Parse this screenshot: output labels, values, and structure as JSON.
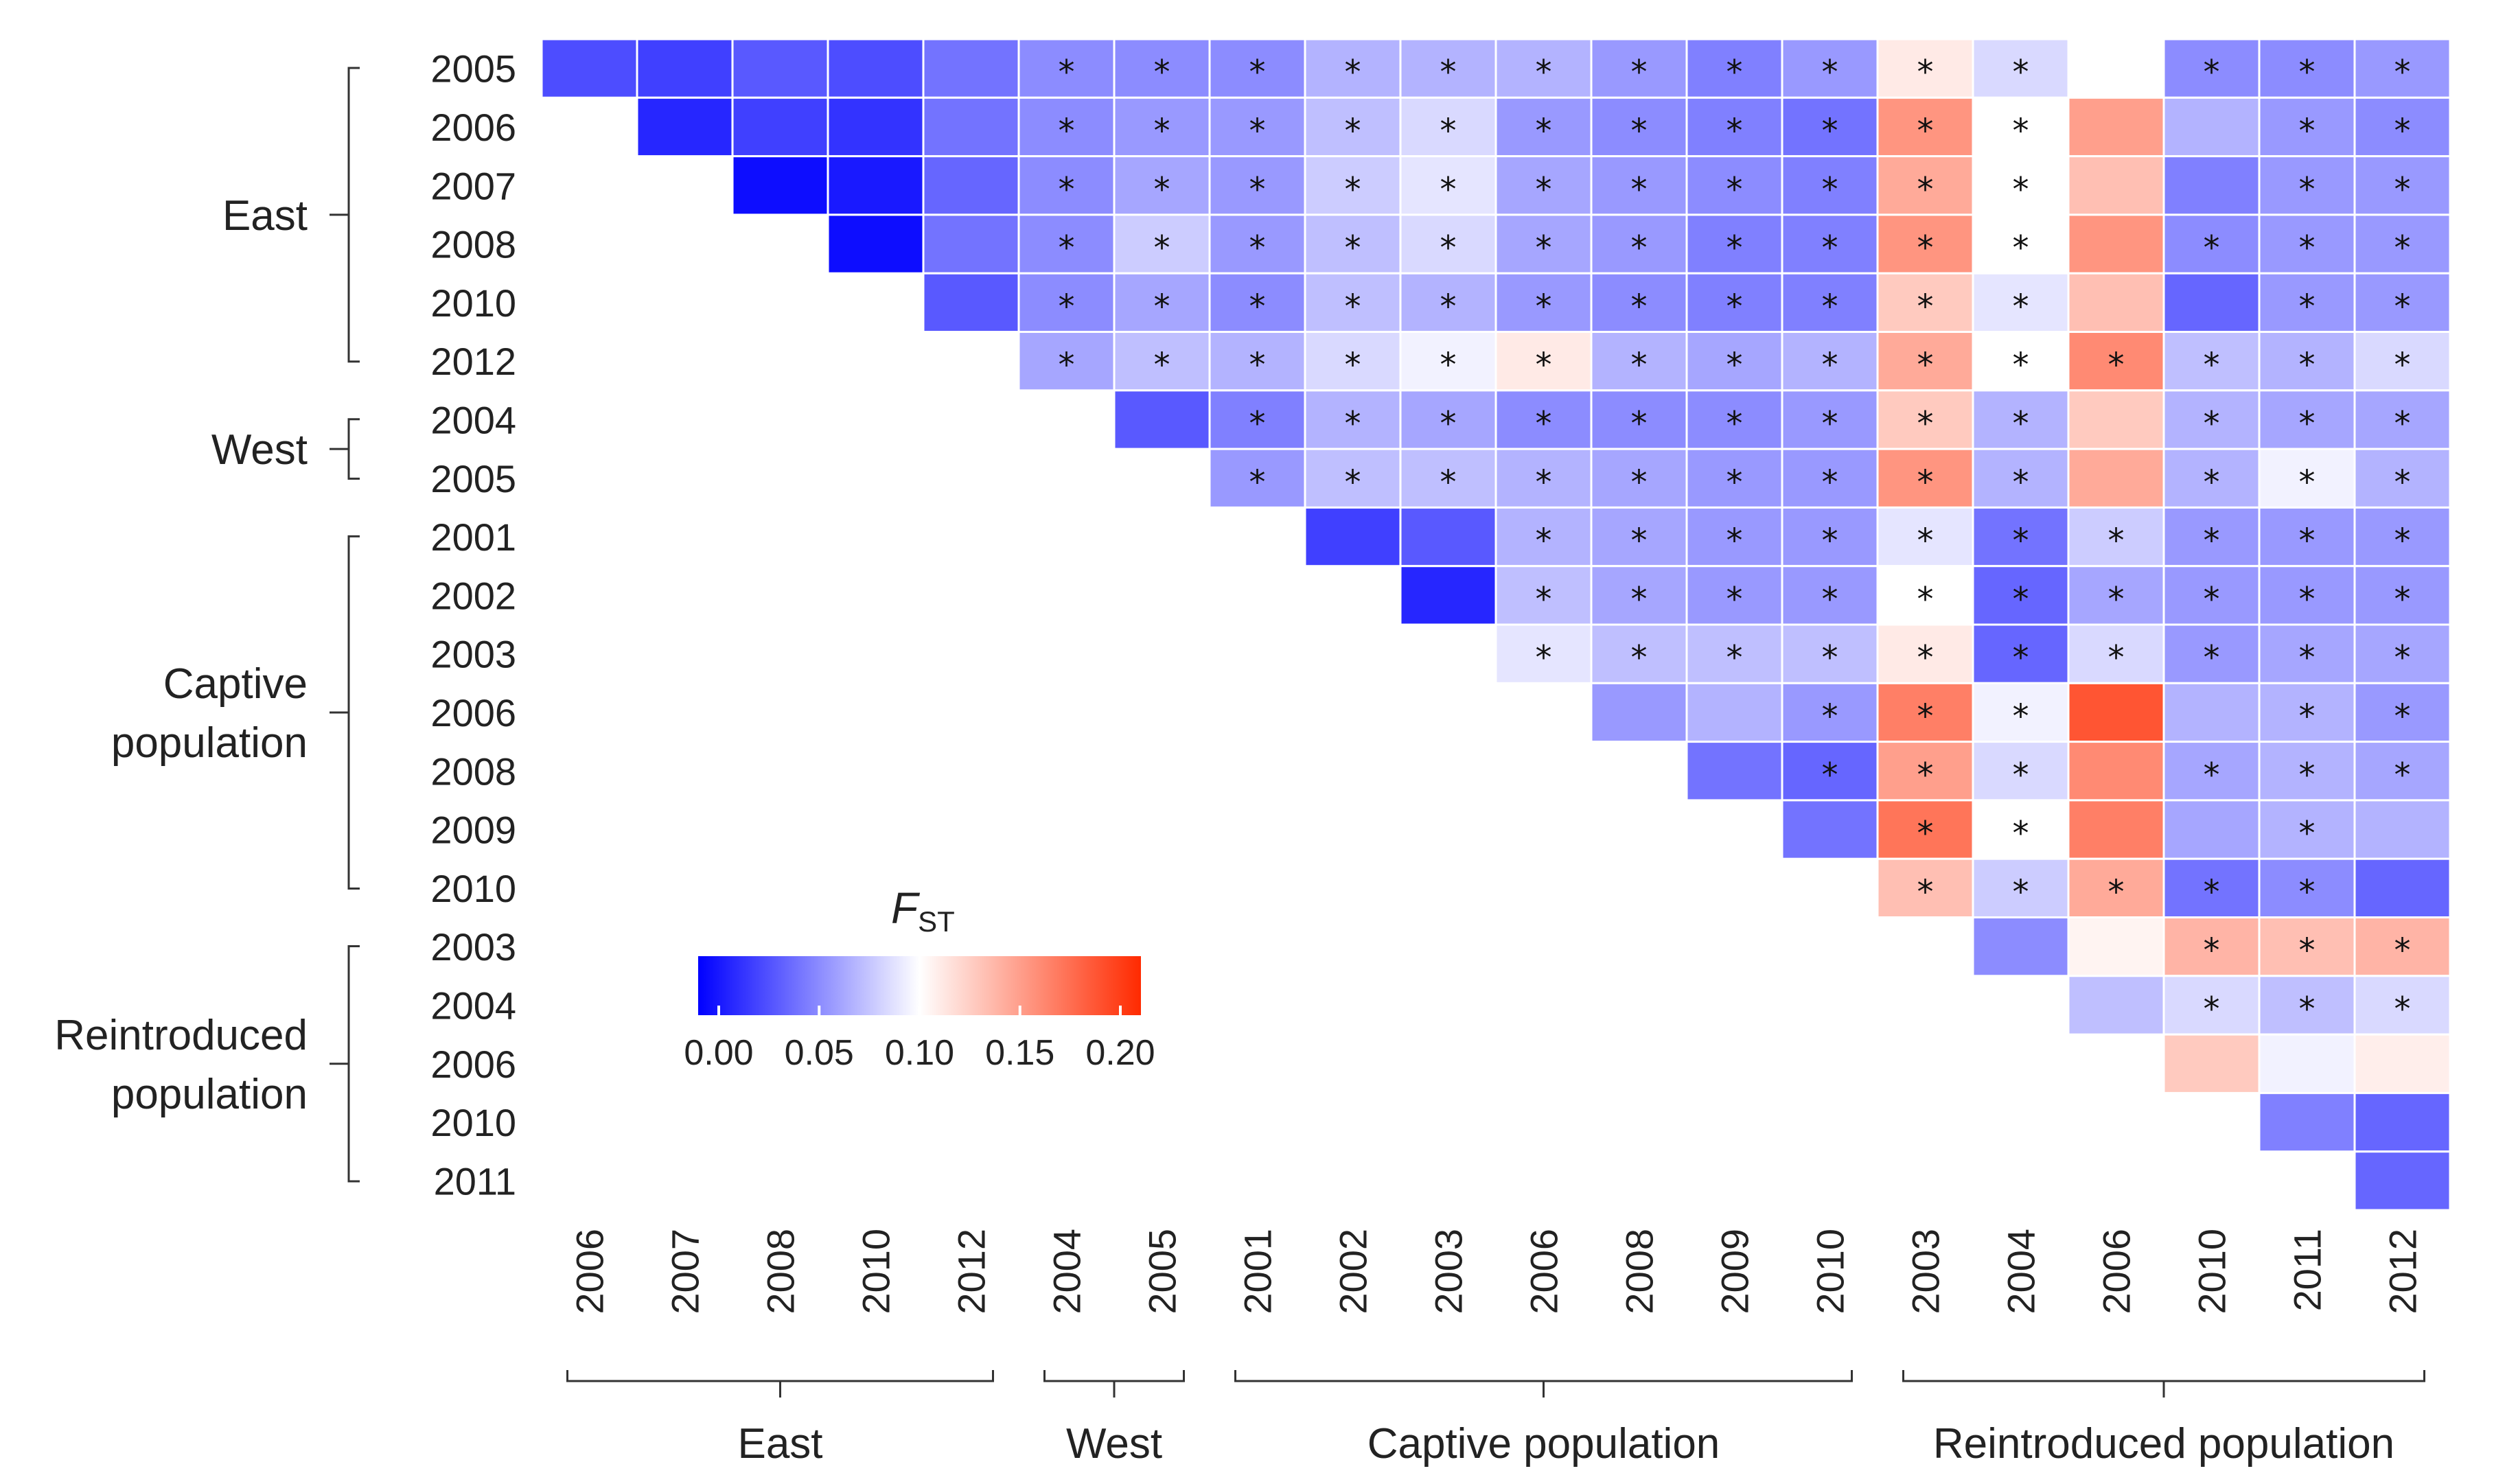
{
  "chart_data": {
    "type": "heatmap",
    "title": "",
    "legend_title": "F",
    "legend_subscript": "ST",
    "colorbar": {
      "min": 0.0,
      "max": 0.2,
      "center": 0.1,
      "low_color": "#0000ff",
      "mid_color": "#ffffff",
      "high_color": "#ff2a00",
      "ticks": [
        "0.00",
        "0.05",
        "0.10",
        "0.15",
        "0.20"
      ]
    },
    "columns": [
      {
        "group": "East",
        "year": "2006"
      },
      {
        "group": "East",
        "year": "2007"
      },
      {
        "group": "East",
        "year": "2008"
      },
      {
        "group": "East",
        "year": "2010"
      },
      {
        "group": "East",
        "year": "2012"
      },
      {
        "group": "West",
        "year": "2004"
      },
      {
        "group": "West",
        "year": "2005"
      },
      {
        "group": "Captive population",
        "year": "2001"
      },
      {
        "group": "Captive population",
        "year": "2002"
      },
      {
        "group": "Captive population",
        "year": "2003"
      },
      {
        "group": "Captive population",
        "year": "2006"
      },
      {
        "group": "Captive population",
        "year": "2008"
      },
      {
        "group": "Captive population",
        "year": "2009"
      },
      {
        "group": "Captive population",
        "year": "2010"
      },
      {
        "group": "Reintroduced population",
        "year": "2003"
      },
      {
        "group": "Reintroduced population",
        "year": "2004"
      },
      {
        "group": "Reintroduced population",
        "year": "2006"
      },
      {
        "group": "Reintroduced population",
        "year": "2010"
      },
      {
        "group": "Reintroduced population",
        "year": "2011"
      },
      {
        "group": "Reintroduced population",
        "year": "2012"
      }
    ],
    "rows": [
      {
        "group": "East",
        "year": "2005"
      },
      {
        "group": "East",
        "year": "2006"
      },
      {
        "group": "East",
        "year": "2007"
      },
      {
        "group": "East",
        "year": "2008"
      },
      {
        "group": "East",
        "year": "2010"
      },
      {
        "group": "East",
        "year": "2012"
      },
      {
        "group": "West",
        "year": "2004"
      },
      {
        "group": "West",
        "year": "2005"
      },
      {
        "group": "Captive population",
        "year": "2001"
      },
      {
        "group": "Captive population",
        "year": "2002"
      },
      {
        "group": "Captive population",
        "year": "2003"
      },
      {
        "group": "Captive population",
        "year": "2006"
      },
      {
        "group": "Captive population",
        "year": "2008"
      },
      {
        "group": "Captive population",
        "year": "2009"
      },
      {
        "group": "Captive population",
        "year": "2010"
      },
      {
        "group": "Reintroduced population",
        "year": "2003"
      },
      {
        "group": "Reintroduced population",
        "year": "2004"
      },
      {
        "group": "Reintroduced population",
        "year": "2006"
      },
      {
        "group": "Reintroduced population",
        "year": "2010"
      },
      {
        "group": "Reintroduced population",
        "year": "2011"
      }
    ],
    "row_groups": [
      {
        "label": [
          "East"
        ],
        "first": 0,
        "last": 5
      },
      {
        "label": [
          "West"
        ],
        "first": 6,
        "last": 7
      },
      {
        "label": [
          "Captive",
          "population"
        ],
        "first": 8,
        "last": 14
      },
      {
        "label": [
          "Reintroduced",
          "population"
        ],
        "first": 15,
        "last": 19
      }
    ],
    "column_groups": [
      {
        "label": "East",
        "first": 0,
        "last": 4
      },
      {
        "label": "West",
        "first": 5,
        "last": 6
      },
      {
        "label": "Captive population",
        "first": 7,
        "last": 13
      },
      {
        "label": "Reintroduced population",
        "first": 14,
        "last": 19
      }
    ],
    "values": [
      [
        0.03,
        0.025,
        0.035,
        0.03,
        0.045,
        0.055,
        0.055,
        0.055,
        0.07,
        0.07,
        0.07,
        0.06,
        0.05,
        0.06,
        0.11,
        0.085,
        null,
        0.055,
        0.055,
        0.06
      ],
      [
        null,
        0.015,
        0.025,
        0.02,
        0.045,
        0.055,
        0.06,
        0.06,
        0.075,
        0.085,
        0.06,
        0.055,
        0.05,
        0.045,
        0.15,
        0.1,
        0.145,
        0.07,
        0.06,
        0.055
      ],
      [
        null,
        null,
        0.005,
        0.01,
        0.04,
        0.055,
        0.065,
        0.06,
        0.08,
        0.09,
        0.065,
        0.06,
        0.055,
        0.05,
        0.14,
        0.1,
        0.13,
        0.05,
        0.06,
        0.06
      ],
      [
        null,
        null,
        null,
        0.005,
        0.045,
        0.055,
        0.08,
        0.06,
        0.075,
        0.085,
        0.065,
        0.06,
        0.05,
        0.05,
        0.15,
        0.1,
        0.15,
        0.055,
        0.06,
        0.06
      ],
      [
        null,
        null,
        null,
        null,
        0.035,
        0.055,
        0.065,
        0.055,
        0.075,
        0.07,
        0.06,
        0.055,
        0.05,
        0.05,
        0.125,
        0.09,
        0.13,
        0.04,
        0.06,
        0.06
      ],
      [
        null,
        null,
        null,
        null,
        null,
        0.065,
        0.075,
        0.07,
        0.085,
        0.095,
        0.11,
        0.07,
        0.065,
        0.07,
        0.14,
        0.1,
        0.155,
        0.075,
        0.07,
        0.085
      ],
      [
        null,
        null,
        null,
        null,
        null,
        null,
        0.035,
        0.05,
        0.07,
        0.065,
        0.055,
        0.055,
        0.055,
        0.06,
        0.125,
        0.07,
        0.125,
        0.07,
        0.065,
        0.065
      ],
      [
        null,
        null,
        null,
        null,
        null,
        null,
        null,
        0.06,
        0.075,
        0.075,
        0.07,
        0.065,
        0.06,
        0.06,
        0.15,
        0.07,
        0.14,
        0.07,
        0.095,
        0.07
      ],
      [
        null,
        null,
        null,
        null,
        null,
        null,
        null,
        null,
        0.025,
        0.035,
        0.07,
        0.065,
        0.06,
        0.06,
        0.09,
        0.045,
        0.08,
        0.06,
        0.06,
        0.06
      ],
      [
        null,
        null,
        null,
        null,
        null,
        null,
        null,
        null,
        null,
        0.015,
        0.075,
        0.065,
        0.06,
        0.06,
        0.1,
        0.04,
        0.065,
        0.06,
        0.06,
        0.06
      ],
      [
        null,
        null,
        null,
        null,
        null,
        null,
        null,
        null,
        null,
        null,
        0.09,
        0.075,
        0.075,
        0.075,
        0.11,
        0.04,
        0.085,
        0.06,
        0.065,
        0.065
      ],
      [
        null,
        null,
        null,
        null,
        null,
        null,
        null,
        null,
        null,
        null,
        null,
        0.06,
        0.07,
        0.06,
        0.16,
        0.095,
        0.18,
        0.07,
        0.07,
        0.06
      ],
      [
        null,
        null,
        null,
        null,
        null,
        null,
        null,
        null,
        null,
        null,
        null,
        null,
        0.045,
        0.04,
        0.145,
        0.085,
        0.155,
        0.065,
        0.07,
        0.065
      ],
      [
        null,
        null,
        null,
        null,
        null,
        null,
        null,
        null,
        null,
        null,
        null,
        null,
        null,
        0.045,
        0.165,
        0.1,
        0.16,
        0.065,
        0.07,
        0.07
      ],
      [
        null,
        null,
        null,
        null,
        null,
        null,
        null,
        null,
        null,
        null,
        null,
        null,
        null,
        null,
        0.13,
        0.08,
        0.14,
        0.045,
        0.055,
        0.04
      ],
      [
        null,
        null,
        null,
        null,
        null,
        null,
        null,
        null,
        null,
        null,
        null,
        null,
        null,
        null,
        null,
        0.055,
        0.105,
        0.135,
        0.13,
        0.135
      ],
      [
        null,
        null,
        null,
        null,
        null,
        null,
        null,
        null,
        null,
        null,
        null,
        null,
        null,
        null,
        null,
        null,
        0.075,
        0.085,
        0.075,
        0.085
      ],
      [
        null,
        null,
        null,
        null,
        null,
        null,
        null,
        null,
        null,
        null,
        null,
        null,
        null,
        null,
        null,
        null,
        null,
        0.125,
        0.095,
        0.108
      ],
      [
        null,
        null,
        null,
        null,
        null,
        null,
        null,
        null,
        null,
        null,
        null,
        null,
        null,
        null,
        null,
        null,
        null,
        null,
        0.05,
        0.04
      ],
      [
        null,
        null,
        null,
        null,
        null,
        null,
        null,
        null,
        null,
        null,
        null,
        null,
        null,
        null,
        null,
        null,
        null,
        null,
        null,
        0.04
      ]
    ],
    "significant": [
      [
        0,
        0,
        0,
        0,
        0,
        1,
        1,
        1,
        1,
        1,
        1,
        1,
        1,
        1,
        1,
        1,
        0,
        1,
        1,
        1
      ],
      [
        0,
        0,
        0,
        0,
        0,
        1,
        1,
        1,
        1,
        1,
        1,
        1,
        1,
        1,
        1,
        1,
        0,
        0,
        1,
        1
      ],
      [
        0,
        0,
        0,
        0,
        0,
        1,
        1,
        1,
        1,
        1,
        1,
        1,
        1,
        1,
        1,
        1,
        0,
        0,
        1,
        1
      ],
      [
        0,
        0,
        0,
        0,
        0,
        1,
        1,
        1,
        1,
        1,
        1,
        1,
        1,
        1,
        1,
        1,
        0,
        1,
        1,
        1
      ],
      [
        0,
        0,
        0,
        0,
        0,
        1,
        1,
        1,
        1,
        1,
        1,
        1,
        1,
        1,
        1,
        1,
        0,
        0,
        1,
        1
      ],
      [
        0,
        0,
        0,
        0,
        0,
        1,
        1,
        1,
        1,
        1,
        1,
        1,
        1,
        1,
        1,
        1,
        1,
        1,
        1,
        1
      ],
      [
        0,
        0,
        0,
        0,
        0,
        0,
        0,
        1,
        1,
        1,
        1,
        1,
        1,
        1,
        1,
        1,
        0,
        1,
        1,
        1
      ],
      [
        0,
        0,
        0,
        0,
        0,
        0,
        0,
        1,
        1,
        1,
        1,
        1,
        1,
        1,
        1,
        1,
        0,
        1,
        1,
        1
      ],
      [
        0,
        0,
        0,
        0,
        0,
        0,
        0,
        0,
        0,
        0,
        1,
        1,
        1,
        1,
        1,
        1,
        1,
        1,
        1,
        1
      ],
      [
        0,
        0,
        0,
        0,
        0,
        0,
        0,
        0,
        0,
        0,
        1,
        1,
        1,
        1,
        1,
        1,
        1,
        1,
        1,
        1
      ],
      [
        0,
        0,
        0,
        0,
        0,
        0,
        0,
        0,
        0,
        0,
        1,
        1,
        1,
        1,
        1,
        1,
        1,
        1,
        1,
        1
      ],
      [
        0,
        0,
        0,
        0,
        0,
        0,
        0,
        0,
        0,
        0,
        0,
        0,
        0,
        1,
        1,
        1,
        0,
        0,
        1,
        1
      ],
      [
        0,
        0,
        0,
        0,
        0,
        0,
        0,
        0,
        0,
        0,
        0,
        0,
        0,
        1,
        1,
        1,
        0,
        1,
        1,
        1
      ],
      [
        0,
        0,
        0,
        0,
        0,
        0,
        0,
        0,
        0,
        0,
        0,
        0,
        0,
        0,
        1,
        1,
        0,
        0,
        1,
        0
      ],
      [
        0,
        0,
        0,
        0,
        0,
        0,
        0,
        0,
        0,
        0,
        0,
        0,
        0,
        0,
        1,
        1,
        1,
        1,
        1,
        0
      ],
      [
        0,
        0,
        0,
        0,
        0,
        0,
        0,
        0,
        0,
        0,
        0,
        0,
        0,
        0,
        0,
        0,
        0,
        1,
        1,
        1
      ],
      [
        0,
        0,
        0,
        0,
        0,
        0,
        0,
        0,
        0,
        0,
        0,
        0,
        0,
        0,
        0,
        0,
        0,
        1,
        1,
        1
      ],
      [
        0,
        0,
        0,
        0,
        0,
        0,
        0,
        0,
        0,
        0,
        0,
        0,
        0,
        0,
        0,
        0,
        0,
        0,
        0,
        0
      ],
      [
        0,
        0,
        0,
        0,
        0,
        0,
        0,
        0,
        0,
        0,
        0,
        0,
        0,
        0,
        0,
        0,
        0,
        0,
        0,
        0
      ],
      [
        0,
        0,
        0,
        0,
        0,
        0,
        0,
        0,
        0,
        0,
        0,
        0,
        0,
        0,
        0,
        0,
        0,
        0,
        0,
        0
      ]
    ],
    "significance_marker": "*"
  }
}
